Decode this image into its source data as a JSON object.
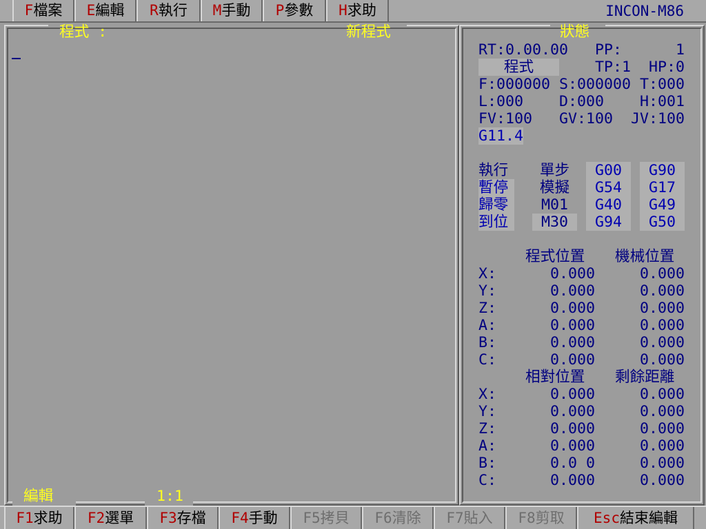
{
  "menu": [
    {
      "key": "F",
      "label": "檔案"
    },
    {
      "key": "E",
      "label": "編輯"
    },
    {
      "key": "R",
      "label": "執行"
    },
    {
      "key": "M",
      "label": "手動"
    },
    {
      "key": "P",
      "label": "參數"
    },
    {
      "key": "H",
      "label": "求助"
    }
  ],
  "brand": "INCON-M86",
  "editor": {
    "title": "程式 :",
    "program_name": "新程式",
    "cursor": "_",
    "mode": "編輯",
    "position": "1:1"
  },
  "status": {
    "title": "狀態",
    "rt": "RT:0.00.00",
    "pp_label": "PP:",
    "pp_value": "1",
    "mode": "程式",
    "tp": "TP:1",
    "hp": "HP:0",
    "f": "F:000000",
    "s": "S:000000",
    "t": "T:000",
    "l": "L:000",
    "d": "D:000",
    "h": "H:001",
    "fv": "FV:100",
    "gv": "GV:100",
    "jv": "JV:100",
    "g_mode": "G11.4",
    "states": [
      "執行",
      "暫停",
      "歸零",
      "到位"
    ],
    "options": [
      "單步",
      "模擬",
      "M01",
      "M30"
    ],
    "gcodes1": [
      "G00",
      "G54",
      "G40",
      "G94"
    ],
    "gcodes2": [
      "G90",
      "G17",
      "G49",
      "G50"
    ]
  },
  "positions": {
    "headers1": [
      "程式位置",
      "機械位置"
    ],
    "headers2": [
      "相對位置",
      "剩餘距離"
    ],
    "axes": [
      "X:",
      "Y:",
      "Z:",
      "A:",
      "B:",
      "C:"
    ],
    "program": [
      "0.000",
      "0.000",
      "0.000",
      "0.000",
      "0.000",
      "0.000"
    ],
    "machine": [
      "0.000",
      "0.000",
      "0.000",
      "0.000",
      "0.000",
      "0.000"
    ],
    "relative": [
      "0.000",
      "0.000",
      "0.000",
      "0.000",
      "0.0 0",
      "0.000"
    ],
    "remaining": [
      "0.000",
      "0.000",
      "0.000",
      "0.000",
      "0.000",
      "0.000"
    ]
  },
  "fkeys": [
    {
      "key": "F1",
      "label": "求助",
      "enabled": true
    },
    {
      "key": "F2",
      "label": "選單",
      "enabled": true
    },
    {
      "key": "F3",
      "label": "存檔",
      "enabled": true
    },
    {
      "key": "F4",
      "label": "手動",
      "enabled": true
    },
    {
      "key": "F5",
      "label": "拷貝",
      "enabled": false
    },
    {
      "key": "F6",
      "label": "清除",
      "enabled": false
    },
    {
      "key": "F7",
      "label": "貼入",
      "enabled": false
    },
    {
      "key": "F8",
      "label": "剪取",
      "enabled": false
    },
    {
      "key": "Esc",
      "label": "結束編輯",
      "enabled": true
    }
  ],
  "colors": {
    "background": "#9c9c9c",
    "text": "#000080",
    "title": "#ffff20",
    "hotkey": "#b00000",
    "disabled": "#6e6e6e"
  }
}
